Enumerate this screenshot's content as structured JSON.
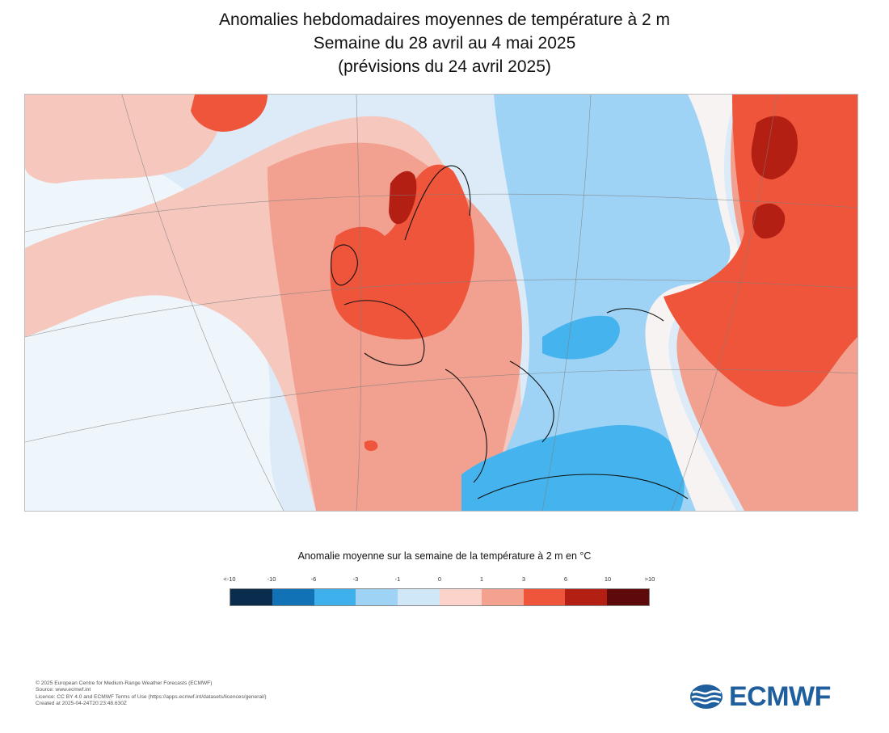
{
  "header": {
    "title_line1": "Anomalies hebdomadaires moyennes de température à 2 m",
    "title_line2": "Semaine du 28 avril au 4 mai 2025",
    "title_line3": "(prévisions du 24 avril 2025)"
  },
  "map": {
    "region": "Europe, North Atlantic, Mediterranean, Middle East",
    "colors": {
      "sea_light_blue": "#dcebf7",
      "pale_pink": "#f6c7bd",
      "salmon": "#f2a090",
      "red": "#ee553b",
      "dark_red": "#b41f14",
      "light_blue": "#9ed3f5",
      "blue": "#45b4ee",
      "coast": "#111111"
    }
  },
  "legend": {
    "title": "Anomalie moyenne sur la semaine de la température à 2 m en °C",
    "ticks": [
      "<-10",
      "-10",
      "-6",
      "-3",
      "-1",
      "0",
      "1",
      "3",
      "6",
      "10",
      ">10"
    ],
    "colors": [
      "#0a2d4d",
      "#1173b5",
      "#3eb1ec",
      "#9ed3f5",
      "#cfe7f7",
      "#fbd3cb",
      "#f4a190",
      "#ee553b",
      "#b41f14",
      "#5e0a0a"
    ]
  },
  "credits": [
    "© 2025 European Centre for Medium-Range Weather Forecasts (ECMWF)",
    "Source: www.ecmwf.int",
    "Licence: CC BY 4.0 and ECMWF Terms of Use (https://apps.ecmwf.int/datasets/licences/general/)",
    "Created at 2025-04-24T20:23:48.630Z"
  ],
  "logo": {
    "text": "ECMWF",
    "color": "#1f5f9e"
  }
}
